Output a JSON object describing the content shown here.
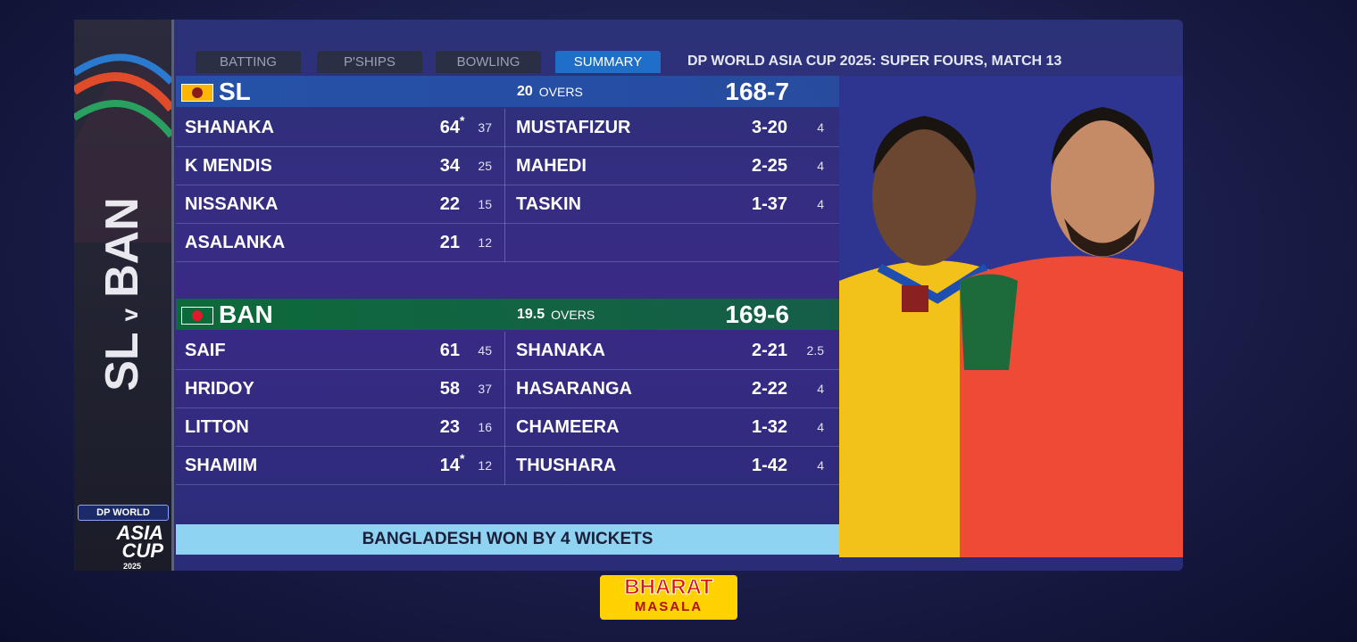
{
  "sidebar": {
    "team_a": "SL",
    "vs": "v",
    "team_b": "BAN",
    "logo_top": "DP WORLD",
    "logo_main": "ASIA CUP",
    "logo_year": "2025"
  },
  "tabs": [
    "BATTING",
    "P'SHIPS",
    "BOWLING",
    "SUMMARY"
  ],
  "match_title": "DP WORLD ASIA CUP 2025: SUPER FOURS, MATCH 13",
  "innings": [
    {
      "team": "SL",
      "overs": "20",
      "overs_label": "OVERS",
      "score": "168-7",
      "batters": [
        {
          "name": "SHANAKA",
          "runs": "64",
          "mark": "*",
          "balls": "37"
        },
        {
          "name": "K MENDIS",
          "runs": "34",
          "balls": "25"
        },
        {
          "name": "NISSANKA",
          "runs": "22",
          "balls": "15"
        },
        {
          "name": "ASALANKA",
          "runs": "21",
          "balls": "12"
        }
      ],
      "bowlers": [
        {
          "name": "MUSTAFIZUR",
          "figures": "3-20",
          "overs": "4"
        },
        {
          "name": "MAHEDI",
          "figures": "2-25",
          "overs": "4"
        },
        {
          "name": "TASKIN",
          "figures": "1-37",
          "overs": "4"
        }
      ]
    },
    {
      "team": "BAN",
      "overs": "19.5",
      "overs_label": "OVERS",
      "score": "169-6",
      "batters": [
        {
          "name": "SAIF",
          "runs": "61",
          "balls": "45"
        },
        {
          "name": "HRIDOY",
          "runs": "58",
          "balls": "37"
        },
        {
          "name": "LITTON",
          "runs": "23",
          "balls": "16"
        },
        {
          "name": "SHAMIM",
          "runs": "14",
          "mark": "*",
          "balls": "12"
        }
      ],
      "bowlers": [
        {
          "name": "SHANAKA",
          "figures": "2-21",
          "overs": "2.5"
        },
        {
          "name": "HASARANGA",
          "figures": "2-22",
          "overs": "4"
        },
        {
          "name": "CHAMEERA",
          "figures": "1-32",
          "overs": "4"
        },
        {
          "name": "THUSHARA",
          "figures": "1-42",
          "overs": "4"
        }
      ]
    }
  ],
  "result": "BANGLADESH WON BY 4 WICKETS",
  "sponsor": {
    "line1": "BHARAT",
    "line2": "MASALA"
  }
}
